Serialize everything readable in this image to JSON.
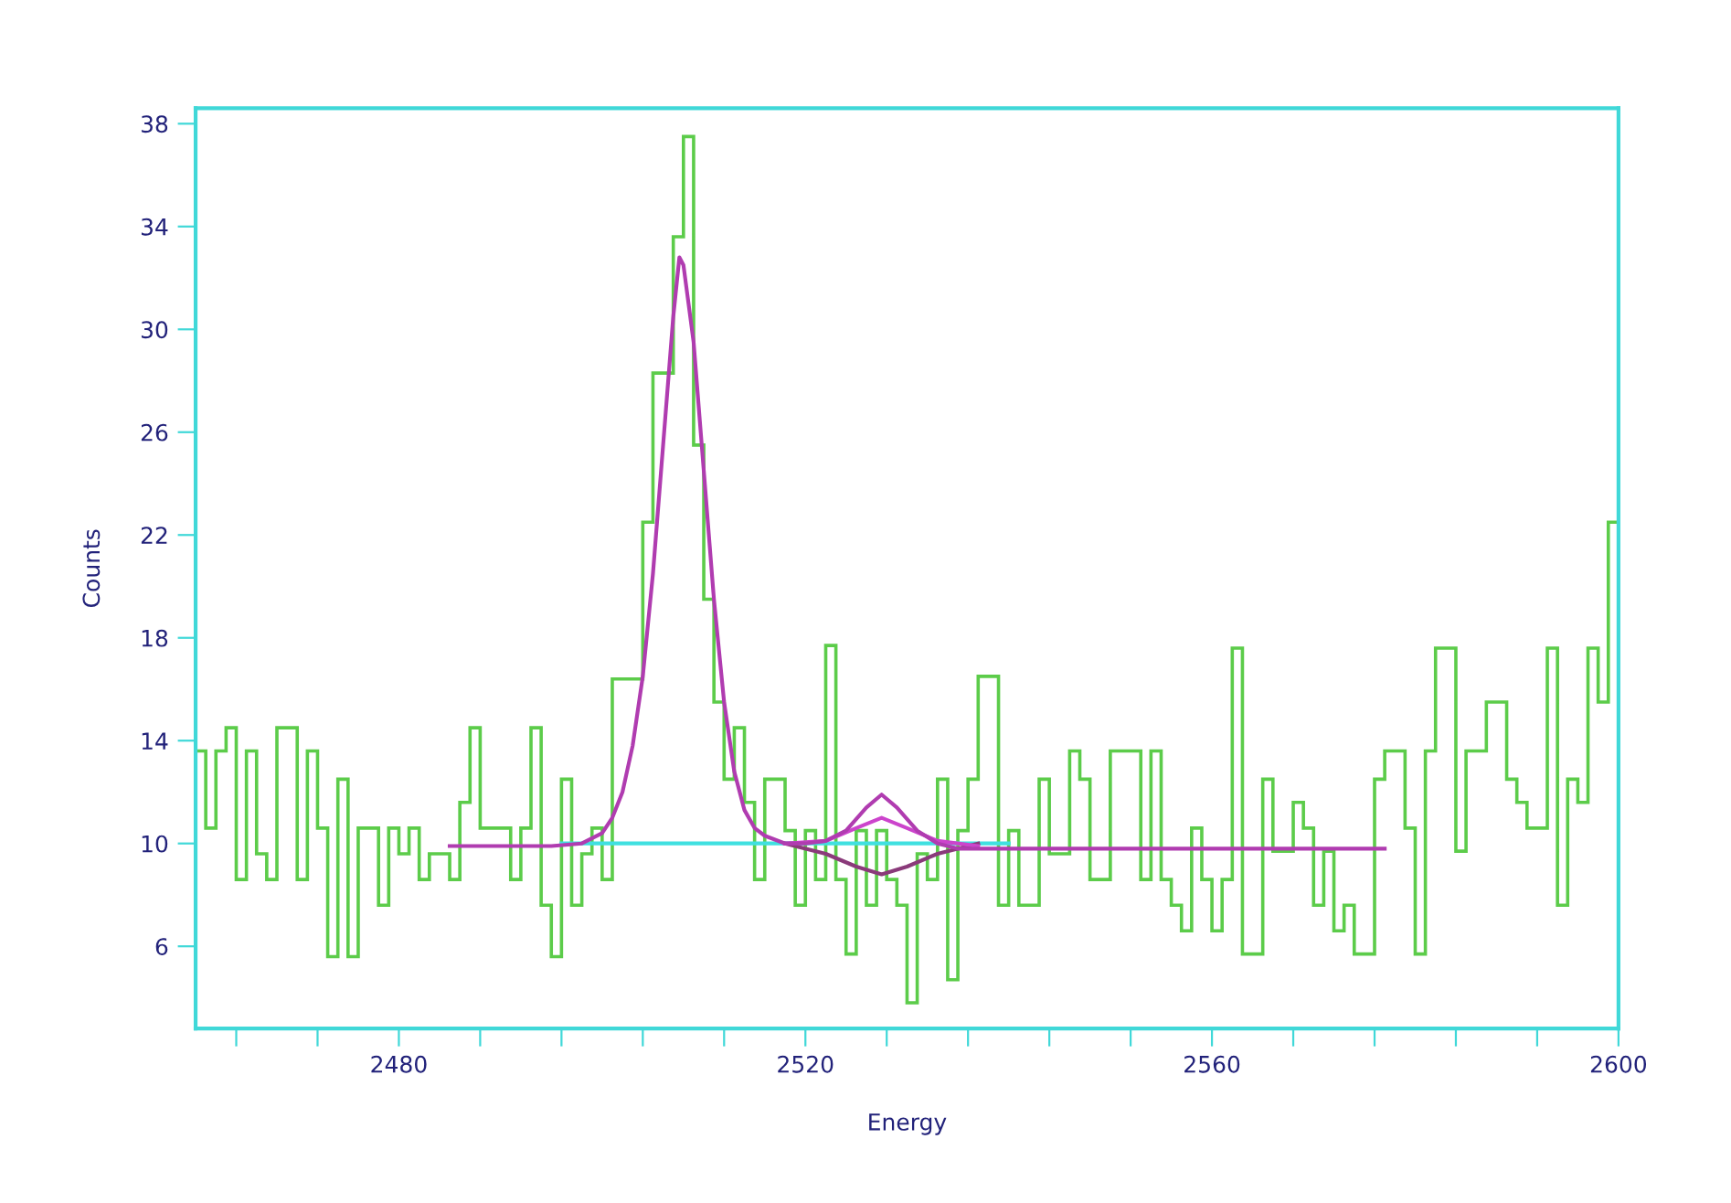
{
  "chart_data": {
    "type": "histogram",
    "xlabel": "Energy",
    "ylabel": "Counts",
    "color": "#5ccc4a",
    "bins": [
      2460,
      2461,
      2462,
      2463,
      2464,
      2465,
      2466,
      2467,
      2468,
      2469,
      2470,
      2471,
      2472,
      2473,
      2474,
      2475,
      2476,
      2477,
      2478,
      2479,
      2480,
      2481,
      2482,
      2483,
      2484,
      2485,
      2486,
      2487,
      2488,
      2489,
      2490,
      2491,
      2492,
      2493,
      2494,
      2495,
      2496,
      2497,
      2498,
      2499,
      2500,
      2501,
      2502,
      2503,
      2504,
      2505,
      2506,
      2507,
      2508,
      2509,
      2510,
      2511,
      2512,
      2513,
      2514,
      2515,
      2516,
      2517,
      2518,
      2519,
      2520,
      2521,
      2522,
      2523,
      2524,
      2525,
      2526,
      2527,
      2528,
      2529,
      2530,
      2531,
      2532,
      2533,
      2534,
      2535,
      2536,
      2537,
      2538,
      2539,
      2540,
      2541,
      2542,
      2543,
      2544,
      2545,
      2546,
      2547,
      2548,
      2549,
      2550,
      2551,
      2552,
      2553,
      2554,
      2555,
      2556,
      2557,
      2558,
      2559,
      2560,
      2561,
      2562,
      2563,
      2564,
      2565,
      2566,
      2567,
      2568,
      2569,
      2570,
      2571,
      2572,
      2573,
      2574,
      2575,
      2576,
      2577,
      2578,
      2579,
      2580,
      2581,
      2582,
      2583,
      2584,
      2585,
      2586,
      2587,
      2588,
      2589,
      2590,
      2591,
      2592,
      2593,
      2594,
      2595,
      2596,
      2597,
      2598,
      2599,
      2600
    ],
    "values": [
      13.6,
      10.6,
      13.6,
      14.5,
      8.6,
      13.6,
      9.6,
      8.6,
      14.5,
      14.5,
      8.6,
      13.6,
      10.6,
      5.6,
      12.5,
      5.6,
      10.6,
      10.6,
      7.6,
      10.6,
      9.6,
      10.6,
      8.6,
      9.6,
      9.6,
      8.6,
      11.6,
      14.5,
      10.6,
      10.6,
      10.6,
      8.6,
      10.6,
      14.5,
      7.6,
      5.6,
      12.5,
      7.6,
      9.6,
      10.6,
      8.6,
      16.4,
      16.4,
      16.4,
      22.5,
      28.3,
      28.3,
      33.6,
      37.5,
      25.5,
      19.5,
      15.5,
      12.5,
      14.5,
      11.6,
      8.6,
      12.5,
      12.5,
      10.5,
      7.6,
      10.5,
      8.6,
      17.7,
      8.6,
      5.7,
      10.5,
      7.6,
      10.5,
      8.6,
      7.6,
      3.8,
      9.6,
      8.6,
      12.5,
      4.7,
      10.5,
      12.5,
      16.5,
      16.5,
      7.6,
      10.5,
      7.6,
      7.6,
      12.5,
      9.6,
      9.6,
      13.6,
      12.5,
      8.6,
      8.6,
      13.6,
      13.6,
      13.6,
      8.6,
      13.6,
      8.6,
      7.6,
      6.6,
      10.6,
      8.6,
      6.6,
      8.6,
      17.6,
      5.7,
      5.7,
      12.5,
      9.7,
      9.7,
      11.6,
      10.6,
      7.6,
      9.7,
      6.6,
      7.6,
      5.7,
      5.7,
      12.5,
      13.6,
      13.6,
      10.6,
      5.7,
      13.6,
      17.6,
      17.6,
      9.7,
      13.6,
      13.6,
      15.5,
      15.5,
      12.5,
      11.6,
      10.6,
      10.6,
      17.6,
      7.6,
      12.5,
      11.6,
      17.6,
      15.5,
      22.5
    ],
    "series": [
      {
        "type": "line",
        "color": "#40e0e0",
        "x": [
          2496,
          2540
        ],
        "values": [
          10.0,
          10.0
        ]
      },
      {
        "type": "line",
        "color": "#8a3a7a",
        "x": [
          2518,
          2522,
          2525,
          2527.5,
          2530,
          2533,
          2537
        ],
        "values": [
          10.0,
          9.6,
          9.1,
          8.8,
          9.1,
          9.6,
          10.0
        ]
      },
      {
        "type": "line",
        "color": "#cc44cc",
        "x": [
          2518,
          2522,
          2525,
          2527.5,
          2530,
          2533,
          2537
        ],
        "values": [
          10.0,
          10.1,
          10.6,
          11.0,
          10.6,
          10.1,
          9.9
        ]
      },
      {
        "type": "line",
        "color": "#b03cb0",
        "x": [
          2485,
          2495,
          2498,
          2500,
          2501,
          2502,
          2503,
          2504,
          2505,
          2506,
          2507,
          2507.6,
          2508,
          2509,
          2510,
          2511,
          2512,
          2513,
          2514,
          2515,
          2516,
          2518,
          2520,
          2522,
          2524,
          2526,
          2527.5,
          2529,
          2531,
          2533,
          2535,
          2540,
          2550,
          2560,
          2577
        ],
        "values": [
          9.9,
          9.9,
          10.0,
          10.4,
          11.0,
          12.0,
          13.8,
          16.5,
          20.5,
          25.5,
          30.5,
          32.8,
          32.5,
          29.5,
          24.5,
          19.5,
          15.5,
          12.8,
          11.3,
          10.6,
          10.3,
          10.0,
          10.0,
          10.1,
          10.5,
          11.4,
          11.9,
          11.4,
          10.5,
          10.0,
          9.8,
          9.8,
          9.8,
          9.8,
          9.8
        ]
      }
    ],
    "xlim": [
      2460,
      2600
    ],
    "ylim": [
      2.8,
      38.6
    ],
    "xticks": [
      {
        "value": 2464,
        "label": null
      },
      {
        "value": 2472,
        "label": null
      },
      2480,
      {
        "value": 2488,
        "label": null
      },
      {
        "value": 2496,
        "label": null
      },
      {
        "value": 2504,
        "label": null
      },
      {
        "value": 2512,
        "label": null
      },
      2520,
      {
        "value": 2528,
        "label": null
      },
      {
        "value": 2536,
        "label": null
      },
      {
        "value": 2544,
        "label": null
      },
      {
        "value": 2552,
        "label": null
      },
      2560,
      {
        "value": 2568,
        "label": null
      },
      {
        "value": 2576,
        "label": null
      },
      {
        "value": 2584,
        "label": null
      },
      {
        "value": 2592,
        "label": null
      },
      2600
    ],
    "yticks": [
      6,
      10,
      14,
      18,
      22,
      26,
      30,
      34,
      38
    ],
    "grid": false,
    "legend": false
  }
}
